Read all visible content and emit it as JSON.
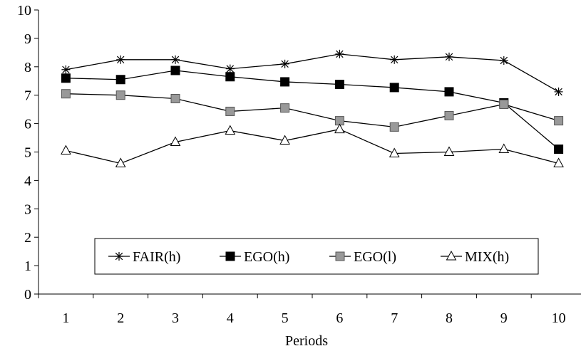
{
  "chart_data": {
    "type": "line",
    "title": "",
    "xlabel": "Periods",
    "ylabel": "",
    "x": [
      1,
      2,
      3,
      4,
      5,
      6,
      7,
      8,
      9,
      10
    ],
    "ylim": [
      0,
      10
    ],
    "yticks": [
      0,
      1,
      2,
      3,
      4,
      5,
      6,
      7,
      8,
      9,
      10
    ],
    "grid": false,
    "legend_position": "bottom-center",
    "series": [
      {
        "name": "FAIR(h)",
        "marker": "star",
        "color": "#000000",
        "values": [
          7.9,
          8.25,
          8.25,
          7.93,
          8.1,
          8.45,
          8.25,
          8.35,
          8.22,
          7.12
        ]
      },
      {
        "name": "EGO(h)",
        "marker": "square-filled",
        "color": "#000000",
        "values": [
          7.6,
          7.55,
          7.87,
          7.65,
          7.47,
          7.38,
          7.27,
          7.12,
          6.73,
          5.1
        ]
      },
      {
        "name": "EGO(l)",
        "marker": "square-gray",
        "color": "#808080",
        "values": [
          7.05,
          7.0,
          6.88,
          6.43,
          6.55,
          6.1,
          5.88,
          6.28,
          6.68,
          6.1
        ]
      },
      {
        "name": "MIX(h)",
        "marker": "triangle-open",
        "color": "#000000",
        "values": [
          5.05,
          4.6,
          5.35,
          5.75,
          5.4,
          5.8,
          4.95,
          5.0,
          5.1,
          4.6
        ]
      }
    ]
  }
}
